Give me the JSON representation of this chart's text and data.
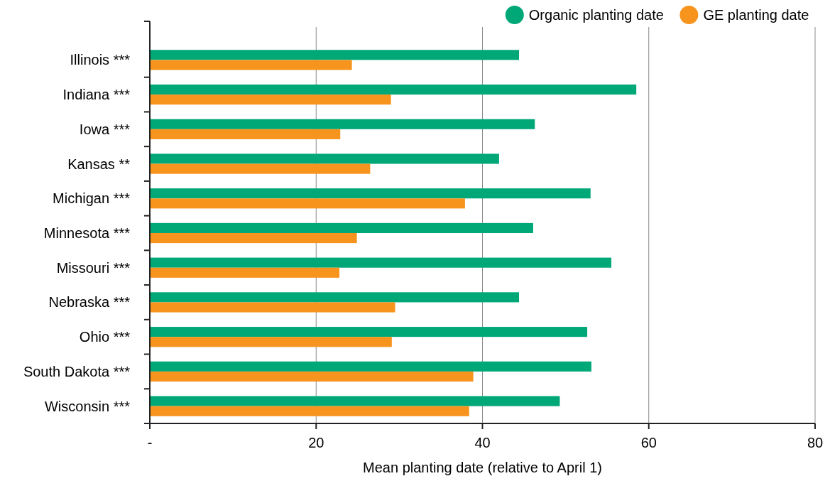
{
  "chart_data": {
    "type": "bar",
    "orientation": "horizontal",
    "xlabel": "Mean planting date (relative to April 1)",
    "categories": [
      "Illinois ***",
      "Indiana ***",
      "Iowa ***",
      "Kansas **",
      "Michigan ***",
      "Minnesota ***",
      "Missouri ***",
      "Nebraska ***",
      "Ohio ***",
      "South Dakota ***",
      "Wisconsin ***"
    ],
    "series": [
      {
        "name": "Organic planting date",
        "color": "#00a878",
        "values": [
          44.4,
          58.5,
          46.3,
          42.0,
          53.0,
          46.1,
          55.5,
          44.4,
          52.6,
          53.1,
          49.3
        ]
      },
      {
        "name": "GE planting date",
        "color": "#f7941d",
        "values": [
          24.3,
          29.0,
          22.9,
          26.5,
          37.9,
          24.9,
          22.8,
          29.5,
          29.1,
          38.9,
          38.4
        ]
      }
    ],
    "xlim": [
      0,
      80
    ],
    "xticks": [
      {
        "value": 0,
        "label": "-"
      },
      20,
      40,
      60,
      80
    ],
    "grid": "x",
    "legend": "top right"
  }
}
